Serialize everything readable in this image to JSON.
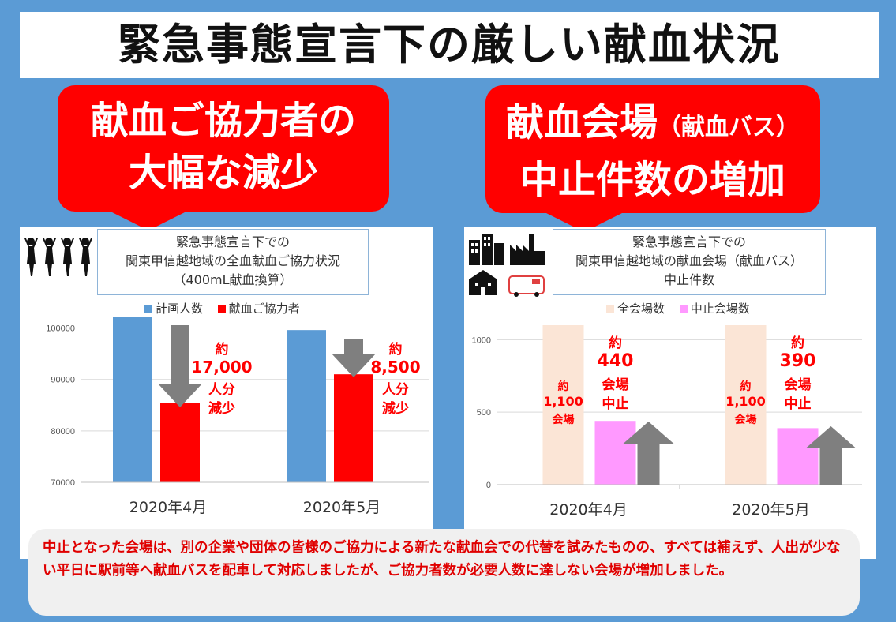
{
  "title": "緊急事態宣言下の厳しい献血状況",
  "callouts": {
    "left": {
      "line1": "献血ご協力者の",
      "line2": "大幅な減少"
    },
    "right": {
      "line1_main": "献血会場",
      "line1_small": "（献血バス）",
      "line2": "中止件数の増加"
    }
  },
  "left_chart": {
    "title_lines": [
      "緊急事態宣言下での",
      "関東甲信越地域の全血献血ご協力状況",
      "（400mL献血換算）"
    ],
    "legend": [
      "計画人数",
      "献血ご協力者"
    ],
    "annotations": [
      {
        "l1": "約",
        "l2": "17,000",
        "l3": "人分",
        "l4": "減少"
      },
      {
        "l1": "約",
        "l2": "8,500",
        "l3": "人分",
        "l4": "減少"
      }
    ]
  },
  "right_chart": {
    "title_lines": [
      "緊急事態宣言下での",
      "関東甲信越地域の献血会場（献血バス）",
      "中止件数"
    ],
    "legend": [
      "全会場数",
      "中止会場数"
    ],
    "total_labels": [
      {
        "l1": "約",
        "l2": "1,100",
        "l3": "会場"
      },
      {
        "l1": "約",
        "l2": "1,100",
        "l3": "会場"
      }
    ],
    "annotations": [
      {
        "l1": "約",
        "l2": "440",
        "l3": "会場",
        "l4": "中止"
      },
      {
        "l1": "約",
        "l2": "390",
        "l3": "会場",
        "l4": "中止"
      }
    ]
  },
  "chart_data": [
    {
      "type": "bar",
      "categories": [
        "2020年4月",
        "2020年5月"
      ],
      "series": [
        {
          "name": "計画人数",
          "values": [
            102200,
            99600
          ],
          "color": "#5b9bd5"
        },
        {
          "name": "献血ご協力者",
          "values": [
            85500,
            91000
          ],
          "color": "#ff0000"
        }
      ],
      "ylim": [
        70000,
        103000
      ],
      "yticks": [
        70000,
        80000,
        90000,
        100000
      ],
      "grid": true,
      "legend": "top"
    },
    {
      "type": "bar",
      "categories": [
        "2020年4月",
        "2020年5月"
      ],
      "series": [
        {
          "name": "全会場数",
          "values": [
            1100,
            1100
          ],
          "color": "#fbe5d6"
        },
        {
          "name": "中止会場数",
          "values": [
            440,
            390
          ],
          "color": "#ff99ff"
        }
      ],
      "ylim": [
        0,
        1100
      ],
      "yticks": [
        0,
        500,
        1000
      ],
      "grid": true,
      "legend": "top"
    }
  ],
  "note": "中止となった会場は、別の企業や団体の皆様のご協力による新たな献血会での代替を試みたものの、すべては補えず、人出が少ない平日に駅前等へ献血バスを配車して対応しましたが、ご協力者数が必要人数に達しない会場が増加しました。"
}
